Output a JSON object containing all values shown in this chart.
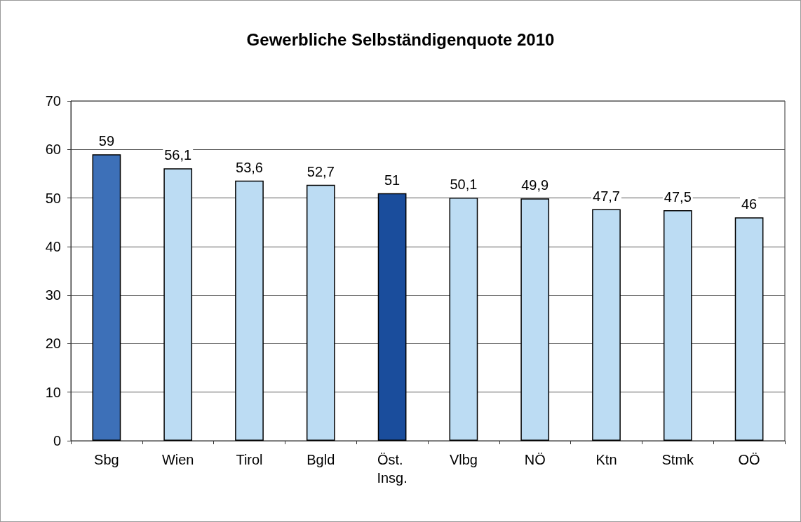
{
  "chart_data": {
    "type": "bar",
    "title": "Gewerbliche Selbständigenquote 2010",
    "categories": [
      "Sbg",
      "Wien",
      "Tirol",
      "Bgld",
      "Öst. Insg.",
      "Vlbg",
      "NÖ",
      "Ktn",
      "Stmk",
      "OÖ"
    ],
    "values": [
      59,
      56.1,
      53.6,
      52.7,
      51,
      50.1,
      49.9,
      47.7,
      47.5,
      46
    ],
    "colors": [
      "#3d70b8",
      "#bcdcf3",
      "#bcdcf3",
      "#bcdcf3",
      "#1a4d9c",
      "#bcdcf3",
      "#bcdcf3",
      "#bcdcf3",
      "#bcdcf3",
      "#bcdcf3"
    ],
    "value_labels": [
      "59",
      "56,1",
      "53,6",
      "52,7",
      "51",
      "50,1",
      "49,9",
      "47,7",
      "47,5",
      "46"
    ],
    "ylim": [
      0,
      70
    ],
    "yticks": [
      0,
      10,
      20,
      30,
      40,
      50,
      60,
      70
    ],
    "grid": "y"
  }
}
